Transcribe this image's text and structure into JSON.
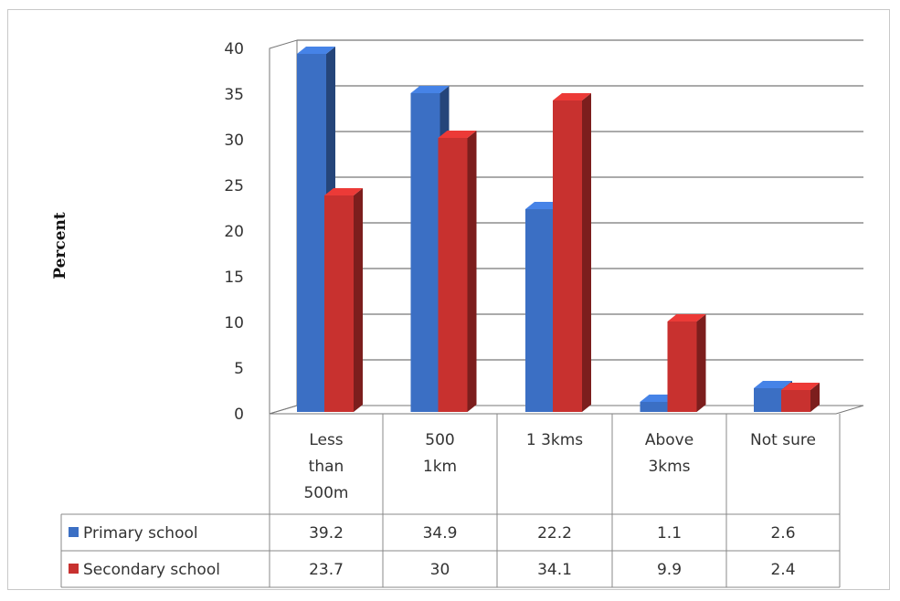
{
  "chart_data": {
    "type": "bar",
    "ylabel": "Percent",
    "ylim": [
      0,
      40
    ],
    "yticks": [
      0,
      5,
      10,
      15,
      20,
      25,
      30,
      35,
      40
    ],
    "categories": [
      [
        "Less",
        "than",
        "500m"
      ],
      [
        "500",
        "1km"
      ],
      [
        "1 3kms"
      ],
      [
        "Above",
        "3kms"
      ],
      [
        "Not sure"
      ]
    ],
    "series": [
      {
        "name": "Primary school",
        "color": "#3b6fc4",
        "values": [
          39.2,
          34.9,
          22.2,
          1.1,
          2.6
        ],
        "labels": [
          "39.2",
          "34.9",
          "22.2",
          "1.1",
          "2.6"
        ]
      },
      {
        "name": "Secondary school",
        "color": "#c8312f",
        "values": [
          23.7,
          30,
          34.1,
          9.9,
          2.4
        ],
        "labels": [
          "23.7",
          "30",
          "34.1",
          "9.9",
          "2.4"
        ]
      }
    ],
    "legend": "data-table",
    "grid": true
  }
}
